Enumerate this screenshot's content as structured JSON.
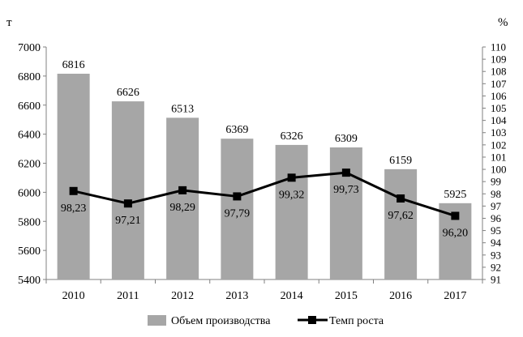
{
  "chart_data": {
    "type": "bar",
    "categories": [
      "2010",
      "2011",
      "2012",
      "2013",
      "2014",
      "2015",
      "2016",
      "2017"
    ],
    "left_axis": {
      "unit": "т",
      "ylim": [
        5400,
        7000
      ],
      "ticks": [
        "5400",
        "5600",
        "5800",
        "6000",
        "6200",
        "6400",
        "6600",
        "6800",
        "7000"
      ]
    },
    "right_axis": {
      "unit": "%",
      "ylim": [
        91,
        110
      ],
      "ticks": [
        "91",
        "92",
        "93",
        "94",
        "95",
        "96",
        "97",
        "98",
        "99",
        "100",
        "101",
        "102",
        "103",
        "104",
        "105",
        "106",
        "107",
        "108",
        "109",
        "110"
      ]
    },
    "series": [
      {
        "name": "Объем производства",
        "type": "bar",
        "axis": "left",
        "color": "#a6a6a6",
        "values": [
          6816,
          6626,
          6513,
          6369,
          6326,
          6309,
          6159,
          5925
        ],
        "labels": [
          "6816",
          "6626",
          "6513",
          "6369",
          "6326",
          "6309",
          "6159",
          "5925"
        ]
      },
      {
        "name": "Темп роста",
        "type": "line",
        "axis": "right",
        "color": "#000000",
        "values": [
          98.23,
          97.21,
          98.29,
          97.79,
          99.32,
          99.73,
          97.62,
          96.2
        ],
        "labels": [
          "98,23",
          "97,21",
          "98,29",
          "97,79",
          "99,32",
          "99,73",
          "97,62",
          "96,20"
        ]
      }
    ],
    "legend_position": "bottom",
    "grid": false
  }
}
